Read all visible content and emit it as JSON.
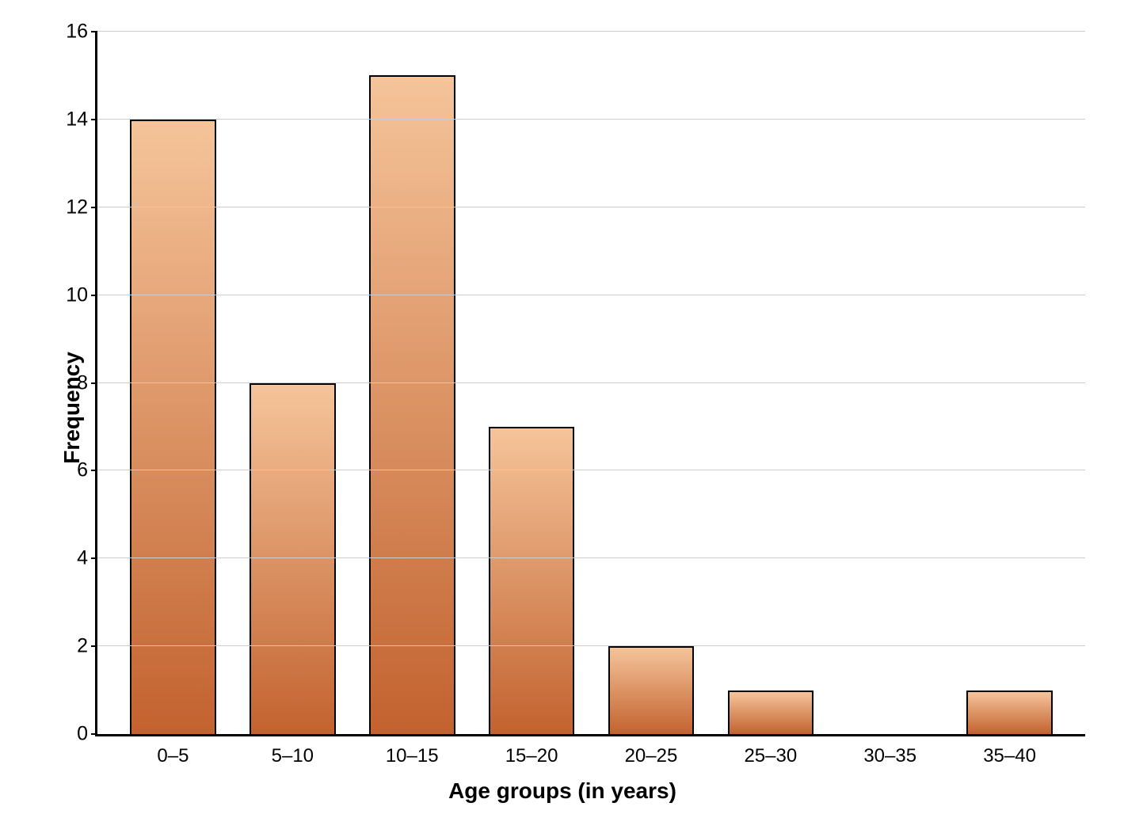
{
  "chart": {
    "type": "bar",
    "xlabel": "Age groups (in years)",
    "ylabel": "Frequency",
    "label_fontsize": 28,
    "tick_fontsize": 25,
    "categories": [
      "0–5",
      "5–10",
      "10–15",
      "15–20",
      "20–25",
      "25–30",
      "30–35",
      "35–40"
    ],
    "values": [
      14,
      8,
      15,
      7,
      2,
      1,
      0,
      1
    ],
    "ylim": [
      0,
      16
    ],
    "ytick_step": 2,
    "yticks": [
      0,
      2,
      4,
      6,
      8,
      10,
      12,
      14,
      16
    ],
    "bar_gradient_top": "#f5c49a",
    "bar_gradient_bottom": "#c2622f",
    "bar_border_color": "#000000",
    "bar_border_width": 2,
    "bar_width": 0.72,
    "background_color": "#ffffff",
    "grid_color": "#cccccc",
    "axis_color": "#000000",
    "axis_width": 3,
    "text_color": "#000000"
  }
}
